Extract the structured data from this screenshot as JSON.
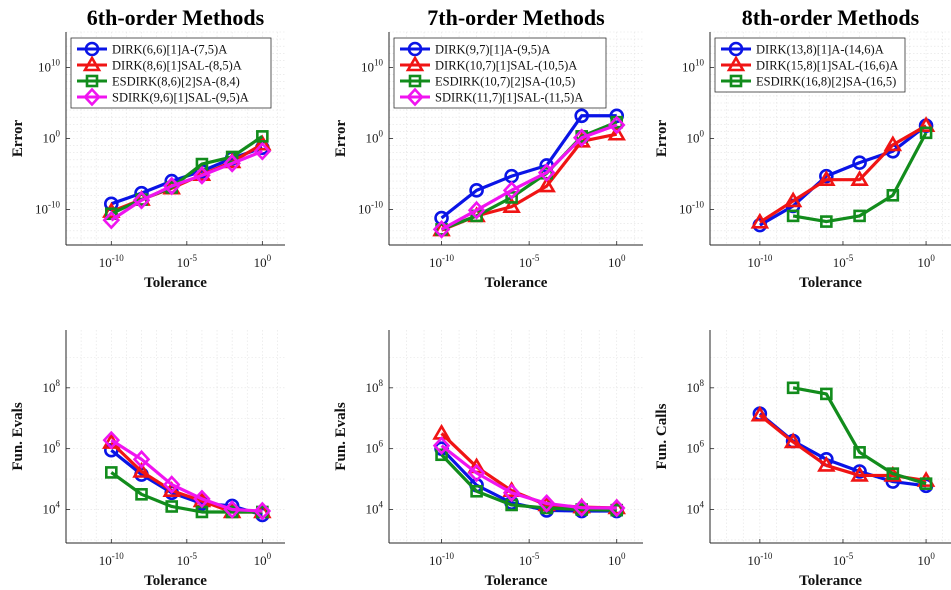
{
  "figure": {
    "colors": {
      "blue": "#0a14e6",
      "red": "#f01414",
      "green": "#128c1c",
      "magenta": "#f014f0",
      "grid": "#e2e2e2",
      "axis": "#262626"
    }
  },
  "chart_data": [
    {
      "type": "line",
      "title": "6th-order Methods",
      "xlabel": "Tolerance",
      "ylabel": "Error",
      "xscale": "log",
      "yscale": "log",
      "xlim": [
        -13,
        1.5
      ],
      "ylim": [
        -15,
        15
      ],
      "xticks": [
        -10,
        -5,
        0
      ],
      "yticks": [
        -10,
        0,
        10
      ],
      "grid": true,
      "legend": "top-left",
      "series": [
        {
          "name": "DIRK(6,6)[1]A-(7,5)A",
          "color": "blue",
          "marker": "circle",
          "x": [
            -10,
            -8,
            -6,
            -4,
            -2,
            0
          ],
          "y": [
            -9.2,
            -7.7,
            -6.0,
            -4.6,
            -2.8,
            -1.3
          ]
        },
        {
          "name": "DIRK(8,6)[1]SAL-(8,5)A",
          "color": "red",
          "marker": "triangle",
          "x": [
            -10,
            -8,
            -6,
            -4,
            -2,
            0
          ],
          "y": [
            -10.3,
            -8.6,
            -7.0,
            -5.1,
            -3.3,
            -0.8
          ]
        },
        {
          "name": "ESDIRK(8,6)[2]SA-(8,4)",
          "color": "green",
          "marker": "square",
          "x": [
            -10,
            -8,
            -6,
            -4,
            -2,
            0
          ],
          "y": [
            -10.6,
            -8.6,
            -6.9,
            -3.6,
            -2.6,
            0.3
          ]
        },
        {
          "name": "SDIRK(9,6)[1]SAL-(9,5)A",
          "color": "magenta",
          "marker": "diamond",
          "x": [
            -10,
            -8,
            -6,
            -4,
            -2,
            0
          ],
          "y": [
            -11.5,
            -8.7,
            -6.7,
            -5.2,
            -3.5,
            -1.8
          ]
        }
      ]
    },
    {
      "type": "line",
      "title": "7th-order Methods",
      "xlabel": "Tolerance",
      "ylabel": "Error",
      "xscale": "log",
      "yscale": "log",
      "xlim": [
        -13,
        1.5
      ],
      "ylim": [
        -15,
        15
      ],
      "xticks": [
        -10,
        -5,
        0
      ],
      "yticks": [
        -10,
        0,
        10
      ],
      "grid": true,
      "legend": "top-left",
      "series": [
        {
          "name": "DIRK(9,7)[1]A-(9,5)A",
          "color": "blue",
          "marker": "circle",
          "x": [
            -10,
            -8,
            -6,
            -4,
            -2,
            0
          ],
          "y": [
            -11.2,
            -7.3,
            -5.3,
            -3.8,
            3.2,
            3.2
          ]
        },
        {
          "name": "DIRK(10,7)[1]SAL-(10,5)A",
          "color": "red",
          "marker": "triangle",
          "x": [
            -10,
            -8,
            -6,
            -4,
            -2,
            0
          ],
          "y": [
            -12.9,
            -10.9,
            -9.6,
            -6.7,
            -0.4,
            0.6
          ]
        },
        {
          "name": "ESDIRK(10,7)[2]SA-(10,5)",
          "color": "green",
          "marker": "square",
          "x": [
            -10,
            -8,
            -6,
            -4,
            -2,
            0
          ],
          "y": [
            -12.8,
            -10.9,
            -8.3,
            -4.9,
            0.3,
            2.3
          ]
        },
        {
          "name": "SDIRK(11,7)[1]SAL-(11,5)A",
          "color": "magenta",
          "marker": "diamond",
          "x": [
            -10,
            -8,
            -6,
            -4,
            -2,
            0
          ],
          "y": [
            -12.8,
            -10.1,
            -7.3,
            -4.8,
            0.1,
            1.9
          ]
        }
      ]
    },
    {
      "type": "line",
      "title": "8th-order Methods",
      "xlabel": "Tolerance",
      "ylabel": "Error",
      "xscale": "log",
      "yscale": "log",
      "xlim": [
        -13,
        1.5
      ],
      "ylim": [
        -15,
        15
      ],
      "xticks": [
        -10,
        -5,
        0
      ],
      "yticks": [
        -10,
        0,
        10
      ],
      "grid": true,
      "legend": "top-left",
      "series": [
        {
          "name": "DIRK(13,8)[1]A-(14,6)A",
          "color": "blue",
          "marker": "circle",
          "x": [
            -10,
            -8,
            -6,
            -4,
            -2,
            0
          ],
          "y": [
            -12.2,
            -9.5,
            -5.3,
            -3.4,
            -1.8,
            1.8
          ]
        },
        {
          "name": "DIRK(15,8)[1]SAL-(16,6)A",
          "color": "red",
          "marker": "triangle",
          "x": [
            -10,
            -8,
            -6,
            -4,
            -2,
            0
          ],
          "y": [
            -11.8,
            -8.8,
            -5.8,
            -5.8,
            -0.9,
            1.8
          ]
        },
        {
          "name": "ESDIRK(16,8)[2]SA-(16,5)",
          "color": "green",
          "marker": "square",
          "x": [
            -8,
            -6,
            -4,
            -2,
            0
          ],
          "y": [
            -10.9,
            -11.7,
            -10.9,
            -8.0,
            0.8
          ]
        }
      ]
    },
    {
      "type": "line",
      "title": "",
      "xlabel": "Tolerance",
      "ylabel": "Fun. Evals",
      "xscale": "log",
      "yscale": "log",
      "xlim": [
        -13,
        1.5
      ],
      "ylim": [
        2.9,
        9.9
      ],
      "xticks": [
        -10,
        -5,
        0
      ],
      "yticks": [
        4,
        6,
        8
      ],
      "grid": true,
      "series": [
        {
          "name": "DIRK(6,6)[1]A-(7,5)A",
          "color": "blue",
          "marker": "circle",
          "x": [
            -10,
            -8,
            -6,
            -4,
            -2,
            0
          ],
          "y": [
            5.95,
            5.15,
            4.55,
            4.2,
            4.12,
            3.82
          ]
        },
        {
          "name": "DIRK(8,6)[1]SAL-(8,5)A",
          "color": "red",
          "marker": "triangle",
          "x": [
            -10,
            -8,
            -6,
            -4,
            -2,
            0
          ],
          "y": [
            6.2,
            5.25,
            4.62,
            4.28,
            3.92,
            3.92
          ]
        },
        {
          "name": "ESDIRK(8,6)[2]SA-(8,4)",
          "color": "green",
          "marker": "square",
          "x": [
            -10,
            -8,
            -6,
            -4,
            -2,
            0
          ],
          "y": [
            5.22,
            4.5,
            4.1,
            3.92,
            3.92,
            3.92
          ]
        },
        {
          "name": "SDIRK(9,6)[1]SAL-(9,5)A",
          "color": "magenta",
          "marker": "diamond",
          "x": [
            -10,
            -8,
            -6,
            -4,
            -2,
            0
          ],
          "y": [
            6.28,
            5.65,
            4.82,
            4.35,
            4.0,
            3.95
          ]
        }
      ]
    },
    {
      "type": "line",
      "title": "",
      "xlabel": "Tolerance",
      "ylabel": "Fun. Evals",
      "xscale": "log",
      "yscale": "log",
      "xlim": [
        -13,
        1.5
      ],
      "ylim": [
        2.9,
        9.9
      ],
      "xticks": [
        -10,
        -5,
        0
      ],
      "yticks": [
        4,
        6,
        8
      ],
      "grid": true,
      "series": [
        {
          "name": "DIRK(9,7)[1]A-(9,5)A",
          "color": "blue",
          "marker": "circle",
          "x": [
            -10,
            -8,
            -6,
            -4,
            -2,
            0
          ],
          "y": [
            6.0,
            4.8,
            4.22,
            3.97,
            3.95,
            3.95
          ]
        },
        {
          "name": "DIRK(10,7)[1]SAL-(10,5)A",
          "color": "red",
          "marker": "triangle",
          "x": [
            -10,
            -8,
            -6,
            -4,
            -2,
            0
          ],
          "y": [
            6.5,
            5.4,
            4.62,
            4.15,
            4.08,
            4.05
          ]
        },
        {
          "name": "ESDIRK(10,7)[2]SA-(10,5)",
          "color": "green",
          "marker": "square",
          "x": [
            -10,
            -8,
            -6,
            -4,
            -2,
            0
          ],
          "y": [
            5.8,
            4.6,
            4.15,
            4.05,
            4.0,
            3.98
          ]
        },
        {
          "name": "SDIRK(11,7)[1]SAL-(11,5)A",
          "color": "magenta",
          "marker": "diamond",
          "x": [
            -10,
            -8,
            -6,
            -4,
            -2,
            0
          ],
          "y": [
            6.1,
            5.2,
            4.55,
            4.2,
            4.06,
            4.05
          ]
        }
      ]
    },
    {
      "type": "line",
      "title": "",
      "xlabel": "Tolerance",
      "ylabel": "Fun. Calls",
      "xscale": "log",
      "yscale": "log",
      "xlim": [
        -13,
        1.5
      ],
      "ylim": [
        2.9,
        9.9
      ],
      "xticks": [
        -10,
        -5,
        0
      ],
      "yticks": [
        4,
        6,
        8
      ],
      "grid": true,
      "series": [
        {
          "name": "DIRK(13,8)[1]A-(14,6)A",
          "color": "blue",
          "marker": "circle",
          "x": [
            -10,
            -8,
            -6,
            -4,
            -2,
            0
          ],
          "y": [
            7.15,
            6.25,
            5.65,
            5.25,
            4.92,
            4.78
          ]
        },
        {
          "name": "DIRK(15,8)[1]SAL-(16,6)A",
          "color": "red",
          "marker": "triangle",
          "x": [
            -10,
            -8,
            -6,
            -4,
            -2,
            0
          ],
          "y": [
            7.1,
            6.22,
            5.45,
            5.12,
            5.12,
            4.95
          ]
        },
        {
          "name": "ESDIRK(16,8)[2]SA-(16,5)",
          "color": "green",
          "marker": "square",
          "x": [
            -8,
            -6,
            -4,
            -2,
            0
          ],
          "y": [
            8.0,
            7.8,
            5.88,
            5.18,
            4.85
          ]
        }
      ]
    }
  ]
}
